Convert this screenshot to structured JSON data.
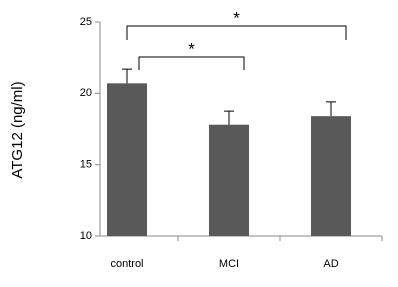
{
  "chart_data": {
    "type": "bar",
    "y_label": "ATG12 (ng/ml)",
    "categories": [
      "control",
      "MCI",
      "AD"
    ],
    "values": [
      20.7,
      17.8,
      18.4
    ],
    "errors": [
      1.0,
      0.95,
      1.0
    ],
    "color": "#595959",
    "ylim": [
      10,
      25
    ],
    "yticks": [
      10,
      15,
      20,
      25
    ],
    "annotations": [
      "*",
      "*"
    ]
  }
}
